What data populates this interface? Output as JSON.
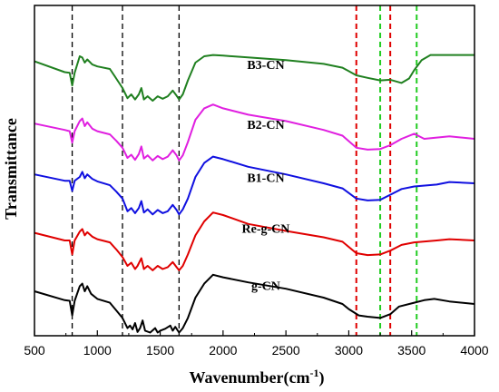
{
  "chart_data": {
    "type": "line",
    "xlabel": "Wavenumber(cm",
    "xlabel_sup": "-1",
    "xlabel_close": ")",
    "ylabel": "Transmittance",
    "xlim": [
      500,
      4000
    ],
    "ylim": [
      0,
      5.2
    ],
    "xticks": [
      500,
      1000,
      1500,
      2000,
      2500,
      3000,
      3500,
      4000
    ],
    "yticks_shown": false,
    "grid": false,
    "reference_lines": [
      {
        "x": 800,
        "color": "#000000"
      },
      {
        "x": 1200,
        "color": "#000000"
      },
      {
        "x": 1650,
        "color": "#000000"
      },
      {
        "x": 3060,
        "color": "#e00000"
      },
      {
        "x": 3330,
        "color": "#e00000"
      },
      {
        "x": 3250,
        "color": "#22cc22"
      },
      {
        "x": 3540,
        "color": "#22cc22"
      }
    ],
    "series": [
      {
        "name": "g-CN",
        "label_x": 2340,
        "label_y": 0.72,
        "color": "#000000",
        "points": [
          [
            500,
            0.7
          ],
          [
            740,
            0.56
          ],
          [
            780,
            0.55
          ],
          [
            800,
            0.32
          ],
          [
            820,
            0.55
          ],
          [
            860,
            0.78
          ],
          [
            880,
            0.82
          ],
          [
            900,
            0.7
          ],
          [
            920,
            0.78
          ],
          [
            950,
            0.66
          ],
          [
            1000,
            0.58
          ],
          [
            1100,
            0.52
          ],
          [
            1150,
            0.4
          ],
          [
            1200,
            0.28
          ],
          [
            1240,
            0.12
          ],
          [
            1260,
            0.16
          ],
          [
            1280,
            0.1
          ],
          [
            1300,
            0.2
          ],
          [
            1320,
            0.06
          ],
          [
            1340,
            0.12
          ],
          [
            1360,
            0.24
          ],
          [
            1380,
            0.08
          ],
          [
            1420,
            0.05
          ],
          [
            1460,
            0.12
          ],
          [
            1480,
            0.05
          ],
          [
            1500,
            0.08
          ],
          [
            1540,
            0.11
          ],
          [
            1580,
            0.16
          ],
          [
            1600,
            0.08
          ],
          [
            1620,
            0.14
          ],
          [
            1650,
            0.05
          ],
          [
            1680,
            0.12
          ],
          [
            1720,
            0.28
          ],
          [
            1780,
            0.6
          ],
          [
            1850,
            0.82
          ],
          [
            1920,
            0.96
          ],
          [
            2000,
            0.92
          ],
          [
            2200,
            0.84
          ],
          [
            2500,
            0.74
          ],
          [
            2800,
            0.6
          ],
          [
            2950,
            0.5
          ],
          [
            3000,
            0.42
          ],
          [
            3080,
            0.32
          ],
          [
            3150,
            0.3
          ],
          [
            3250,
            0.28
          ],
          [
            3330,
            0.34
          ],
          [
            3400,
            0.46
          ],
          [
            3520,
            0.52
          ],
          [
            3600,
            0.56
          ],
          [
            3680,
            0.58
          ],
          [
            3800,
            0.54
          ],
          [
            4000,
            0.5
          ]
        ]
      },
      {
        "name": "Re-g-CN",
        "label_x": 2340,
        "label_y": 1.62,
        "color": "#e00000",
        "points": [
          [
            500,
            1.62
          ],
          [
            740,
            1.5
          ],
          [
            780,
            1.5
          ],
          [
            800,
            1.28
          ],
          [
            820,
            1.5
          ],
          [
            860,
            1.64
          ],
          [
            880,
            1.68
          ],
          [
            900,
            1.58
          ],
          [
            920,
            1.63
          ],
          [
            960,
            1.56
          ],
          [
            1000,
            1.52
          ],
          [
            1100,
            1.47
          ],
          [
            1150,
            1.36
          ],
          [
            1200,
            1.24
          ],
          [
            1240,
            1.1
          ],
          [
            1270,
            1.15
          ],
          [
            1300,
            1.05
          ],
          [
            1320,
            1.1
          ],
          [
            1350,
            1.22
          ],
          [
            1370,
            1.05
          ],
          [
            1400,
            1.1
          ],
          [
            1440,
            1.03
          ],
          [
            1480,
            1.1
          ],
          [
            1520,
            1.05
          ],
          [
            1560,
            1.08
          ],
          [
            1600,
            1.16
          ],
          [
            1630,
            1.08
          ],
          [
            1650,
            1.03
          ],
          [
            1680,
            1.1
          ],
          [
            1720,
            1.28
          ],
          [
            1780,
            1.58
          ],
          [
            1850,
            1.8
          ],
          [
            1920,
            1.94
          ],
          [
            2000,
            1.9
          ],
          [
            2200,
            1.76
          ],
          [
            2500,
            1.65
          ],
          [
            2800,
            1.55
          ],
          [
            2950,
            1.48
          ],
          [
            3060,
            1.3
          ],
          [
            3150,
            1.27
          ],
          [
            3250,
            1.28
          ],
          [
            3330,
            1.34
          ],
          [
            3420,
            1.43
          ],
          [
            3520,
            1.47
          ],
          [
            3700,
            1.5
          ],
          [
            3800,
            1.52
          ],
          [
            4000,
            1.5
          ]
        ]
      },
      {
        "name": "B1-CN",
        "label_x": 2340,
        "label_y": 2.42,
        "color": "#1010e0",
        "points": [
          [
            500,
            2.54
          ],
          [
            740,
            2.44
          ],
          [
            780,
            2.44
          ],
          [
            800,
            2.28
          ],
          [
            820,
            2.44
          ],
          [
            860,
            2.5
          ],
          [
            880,
            2.58
          ],
          [
            900,
            2.48
          ],
          [
            920,
            2.54
          ],
          [
            960,
            2.47
          ],
          [
            1000,
            2.43
          ],
          [
            1100,
            2.37
          ],
          [
            1150,
            2.27
          ],
          [
            1200,
            2.16
          ],
          [
            1240,
            1.96
          ],
          [
            1270,
            2.01
          ],
          [
            1300,
            1.93
          ],
          [
            1330,
            2.01
          ],
          [
            1350,
            2.12
          ],
          [
            1370,
            1.94
          ],
          [
            1400,
            1.99
          ],
          [
            1440,
            1.91
          ],
          [
            1480,
            1.98
          ],
          [
            1520,
            1.93
          ],
          [
            1560,
            1.96
          ],
          [
            1600,
            2.06
          ],
          [
            1630,
            1.98
          ],
          [
            1650,
            1.91
          ],
          [
            1680,
            1.99
          ],
          [
            1720,
            2.16
          ],
          [
            1780,
            2.5
          ],
          [
            1850,
            2.72
          ],
          [
            1920,
            2.82
          ],
          [
            2000,
            2.78
          ],
          [
            2200,
            2.66
          ],
          [
            2500,
            2.54
          ],
          [
            2800,
            2.4
          ],
          [
            2950,
            2.32
          ],
          [
            3060,
            2.16
          ],
          [
            3150,
            2.13
          ],
          [
            3250,
            2.14
          ],
          [
            3330,
            2.22
          ],
          [
            3420,
            2.31
          ],
          [
            3520,
            2.35
          ],
          [
            3700,
            2.38
          ],
          [
            3800,
            2.42
          ],
          [
            4000,
            2.4
          ]
        ]
      },
      {
        "name": "B2-CN",
        "label_x": 2340,
        "label_y": 3.26,
        "color": "#e020e0",
        "points": [
          [
            500,
            3.34
          ],
          [
            740,
            3.24
          ],
          [
            780,
            3.22
          ],
          [
            800,
            3.04
          ],
          [
            820,
            3.22
          ],
          [
            860,
            3.38
          ],
          [
            880,
            3.42
          ],
          [
            900,
            3.3
          ],
          [
            920,
            3.36
          ],
          [
            960,
            3.26
          ],
          [
            1000,
            3.22
          ],
          [
            1100,
            3.17
          ],
          [
            1150,
            3.07
          ],
          [
            1200,
            2.96
          ],
          [
            1240,
            2.8
          ],
          [
            1270,
            2.85
          ],
          [
            1300,
            2.77
          ],
          [
            1330,
            2.86
          ],
          [
            1350,
            2.98
          ],
          [
            1370,
            2.79
          ],
          [
            1400,
            2.84
          ],
          [
            1440,
            2.76
          ],
          [
            1480,
            2.83
          ],
          [
            1520,
            2.78
          ],
          [
            1560,
            2.82
          ],
          [
            1600,
            2.92
          ],
          [
            1630,
            2.84
          ],
          [
            1650,
            2.76
          ],
          [
            1680,
            2.84
          ],
          [
            1720,
            3.05
          ],
          [
            1780,
            3.4
          ],
          [
            1850,
            3.58
          ],
          [
            1920,
            3.64
          ],
          [
            2000,
            3.58
          ],
          [
            2200,
            3.48
          ],
          [
            2500,
            3.38
          ],
          [
            2800,
            3.24
          ],
          [
            2950,
            3.15
          ],
          [
            3060,
            2.96
          ],
          [
            3150,
            2.93
          ],
          [
            3250,
            2.94
          ],
          [
            3330,
            3.0
          ],
          [
            3420,
            3.1
          ],
          [
            3520,
            3.18
          ],
          [
            3600,
            3.1
          ],
          [
            3700,
            3.12
          ],
          [
            3800,
            3.14
          ],
          [
            4000,
            3.1
          ]
        ]
      },
      {
        "name": "B3-CN",
        "label_x": 2340,
        "label_y": 4.2,
        "color": "#208020",
        "points": [
          [
            500,
            4.32
          ],
          [
            740,
            4.15
          ],
          [
            780,
            4.14
          ],
          [
            800,
            3.94
          ],
          [
            820,
            4.14
          ],
          [
            860,
            4.4
          ],
          [
            880,
            4.38
          ],
          [
            900,
            4.3
          ],
          [
            920,
            4.35
          ],
          [
            960,
            4.27
          ],
          [
            1000,
            4.24
          ],
          [
            1100,
            4.2
          ],
          [
            1150,
            4.05
          ],
          [
            1200,
            3.9
          ],
          [
            1240,
            3.74
          ],
          [
            1270,
            3.8
          ],
          [
            1300,
            3.72
          ],
          [
            1330,
            3.8
          ],
          [
            1350,
            3.9
          ],
          [
            1370,
            3.72
          ],
          [
            1400,
            3.77
          ],
          [
            1440,
            3.7
          ],
          [
            1480,
            3.77
          ],
          [
            1520,
            3.73
          ],
          [
            1560,
            3.77
          ],
          [
            1600,
            3.86
          ],
          [
            1630,
            3.78
          ],
          [
            1650,
            3.72
          ],
          [
            1680,
            3.8
          ],
          [
            1720,
            4.02
          ],
          [
            1780,
            4.3
          ],
          [
            1850,
            4.4
          ],
          [
            1920,
            4.42
          ],
          [
            2000,
            4.41
          ],
          [
            2500,
            4.34
          ],
          [
            2800,
            4.28
          ],
          [
            2950,
            4.22
          ],
          [
            3060,
            4.1
          ],
          [
            3150,
            4.06
          ],
          [
            3250,
            4.02
          ],
          [
            3330,
            4.03
          ],
          [
            3420,
            3.98
          ],
          [
            3480,
            4.05
          ],
          [
            3520,
            4.18
          ],
          [
            3580,
            4.34
          ],
          [
            3650,
            4.42
          ],
          [
            3800,
            4.42
          ],
          [
            4000,
            4.42
          ]
        ]
      }
    ]
  }
}
